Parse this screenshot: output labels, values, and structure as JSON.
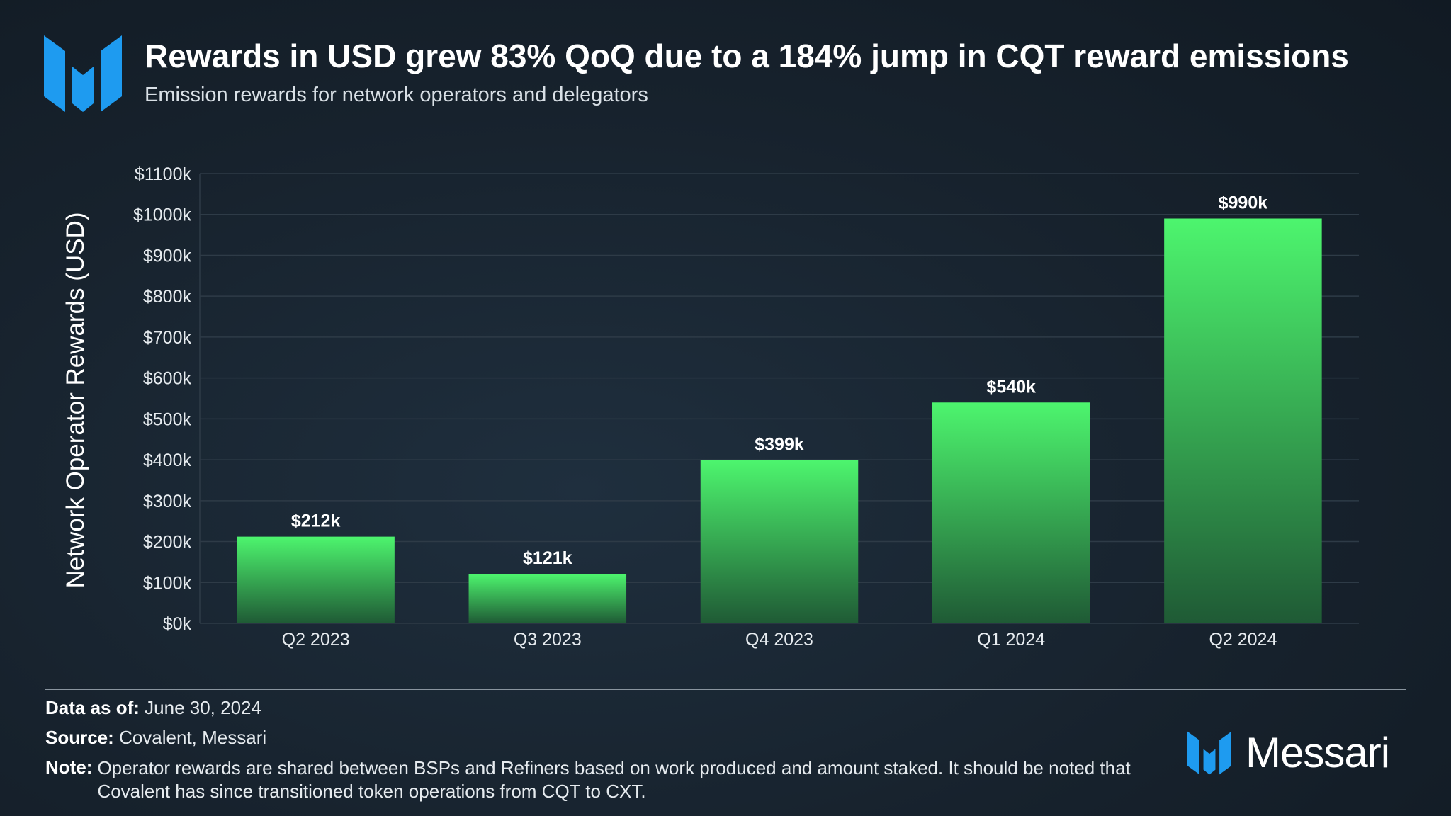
{
  "header": {
    "title": "Rewards in USD grew 83% QoQ due to a 184% jump in CQT reward emissions",
    "subtitle": "Emission rewards for network operators and delegators"
  },
  "colors": {
    "background": "#17222d",
    "bar_top": "#4df56e",
    "bar_bottom": "#1f5a35",
    "logo_blue": "#1e9bf0",
    "grid": "#2e3b47"
  },
  "chart_data": {
    "type": "bar",
    "title": "Rewards in USD grew 83% QoQ due to a 184% jump in CQT reward emissions",
    "subtitle": "Emission rewards for network operators and delegators",
    "xlabel": "",
    "ylabel": "Network Operator Rewards (USD)",
    "categories": [
      "Q2 2023",
      "Q3 2023",
      "Q4 2023",
      "Q1 2024",
      "Q2 2024"
    ],
    "values": [
      212,
      121,
      399,
      540,
      990
    ],
    "data_labels": [
      "$212k",
      "$121k",
      "$399k",
      "$540k",
      "$990k"
    ],
    "unit": "thousand USD",
    "ylim": [
      0,
      1100
    ],
    "yticks": [
      0,
      100,
      200,
      300,
      400,
      500,
      600,
      700,
      800,
      900,
      1000,
      1100
    ],
    "ytick_labels": [
      "$0k",
      "$100k",
      "$200k",
      "$300k",
      "$400k",
      "$500k",
      "$600k",
      "$700k",
      "$800k",
      "$900k",
      "$1000k",
      "$1100k"
    ],
    "grid": true,
    "legend": "none"
  },
  "footer": {
    "data_as_of_label": "Data as of:",
    "data_as_of_value": "June 30, 2024",
    "source_label": "Source:",
    "source_value": "Covalent, Messari",
    "note_label": "Note:",
    "note_value": "Operator rewards are shared between BSPs and Refiners based on work produced and amount staked. It should be noted that Covalent has since transitioned token operations from CQT to CXT.",
    "brand": "Messari"
  },
  "icons": {
    "header_logo": "messari-logo-icon",
    "footer_logo": "messari-logo-icon"
  }
}
